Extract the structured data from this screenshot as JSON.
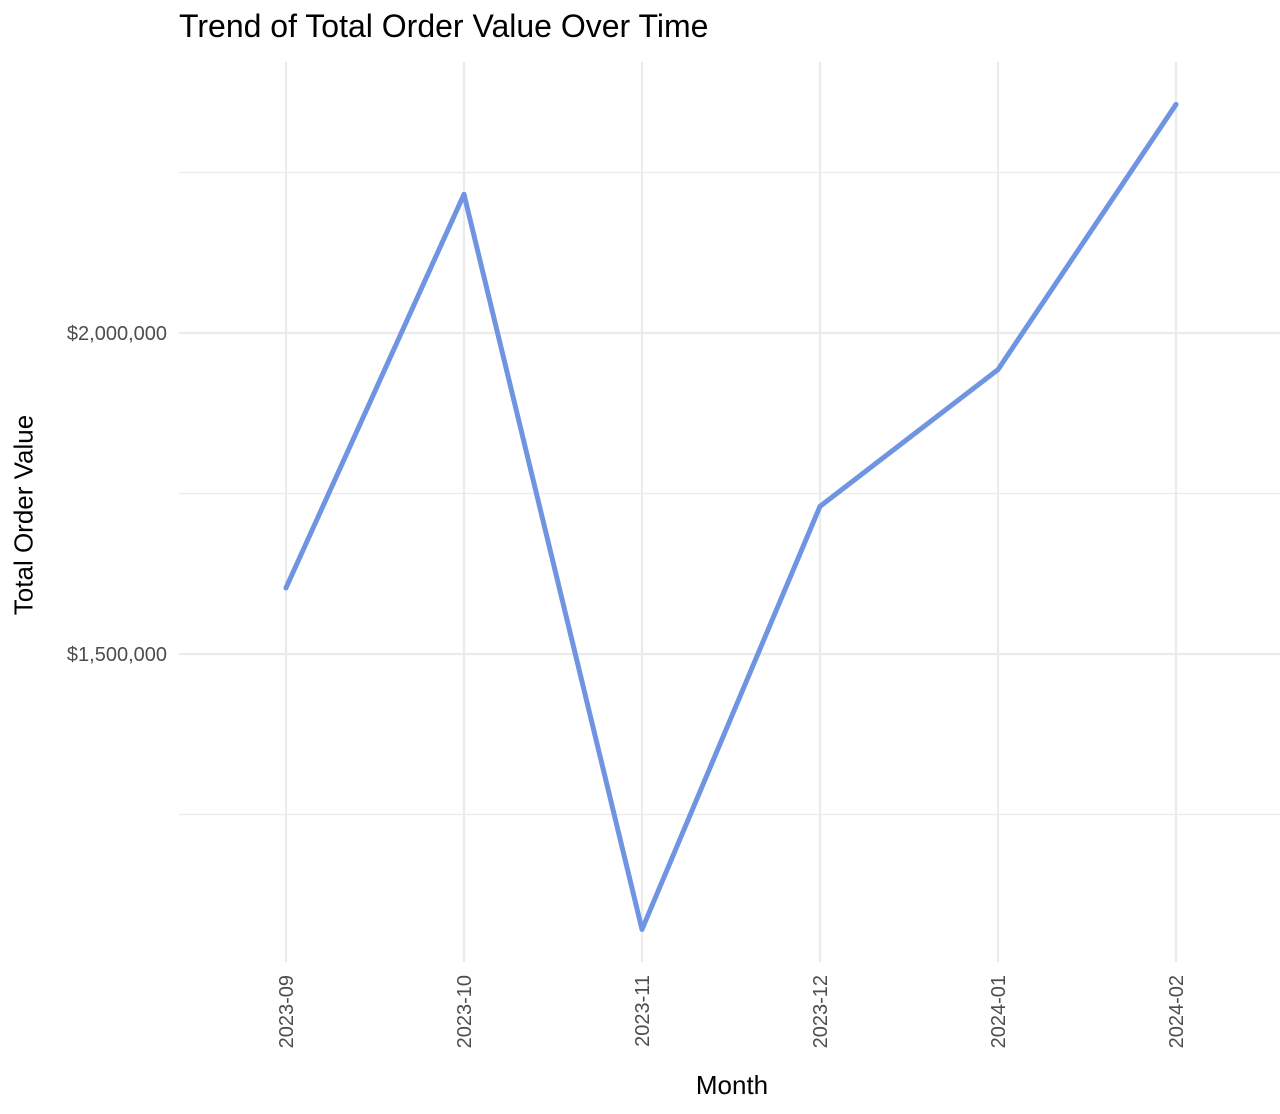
{
  "chart_data": {
    "type": "line",
    "title": "Trend of Total Order Value Over Time",
    "xlabel": "Month",
    "ylabel": "Total Order Value",
    "categories": [
      "2023-09",
      "2023-10",
      "2023-11",
      "2023-12",
      "2024-01",
      "2024-02"
    ],
    "series": [
      {
        "values": [
          1603000,
          2216000,
          1071000,
          1730000,
          1943000,
          2356000
        ]
      }
    ],
    "ylim": [
      1000000,
      2450000
    ],
    "yticks": [
      {
        "value": 1500000,
        "label": "$1,500,000"
      },
      {
        "value": 2000000,
        "label": "$2,000,000"
      }
    ],
    "minor_yticks": [
      1250000,
      1750000,
      2250000
    ],
    "grid": true,
    "colors": {
      "line": "#6F95E2",
      "grid": "#EBEBEB",
      "tick_text": "#4D4D4D"
    }
  }
}
